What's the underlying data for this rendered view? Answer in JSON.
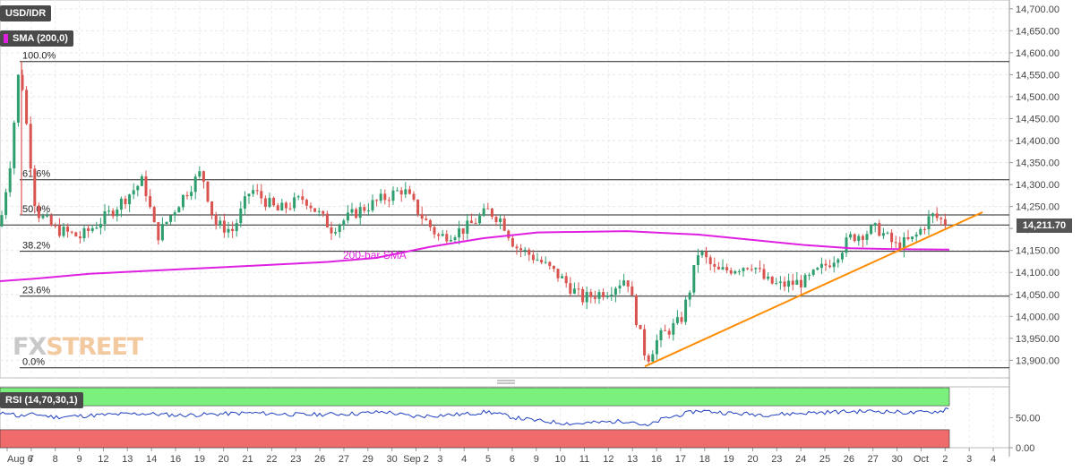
{
  "header": {
    "symbol": "USD/IDR",
    "sma_label": "SMA (200,0)",
    "rsi_label": "RSI (14,70,30,1)"
  },
  "last_price": "14,211.70",
  "logo": {
    "fx": "FX",
    "street": "STREET"
  },
  "colors": {
    "up": "#2e9e6e",
    "down": "#d9534f",
    "sma": "#e020e0",
    "trendline": "#ff8c00",
    "rsi_line": "#1f3fbf",
    "rsi_overbought": "#7cf07c",
    "rsi_oversold": "#f06b6b"
  },
  "chart_data": [
    {
      "type": "candlestick",
      "title": "USD/IDR",
      "ylim": [
        13860,
        14720
      ],
      "y_ticks": [
        "14,700.00",
        "14,650.00",
        "14,600.00",
        "14,550.00",
        "14,500.00",
        "14,450.00",
        "14,400.00",
        "14,350.00",
        "14,300.00",
        "14,250.00",
        "14,200.00",
        "14,150.00",
        "14,100.00",
        "14,050.00",
        "14,000.00",
        "13,950.00",
        "13,900.00"
      ],
      "x_ticks": [
        "Aug 6",
        "7",
        "8",
        "9",
        "12",
        "13",
        "14",
        "16",
        "19",
        "20",
        "21",
        "22",
        "23",
        "26",
        "27",
        "29",
        "30",
        "Sep 2",
        "3",
        "4",
        "5",
        "6",
        "9",
        "10",
        "11",
        "12",
        "13",
        "16",
        "17",
        "18",
        "19",
        "20",
        "23",
        "24",
        "25",
        "26",
        "27",
        "30",
        "Oct",
        "2",
        "3",
        "4"
      ],
      "fibonacci": [
        {
          "label": "100.0%",
          "value": 14580
        },
        {
          "label": "61.6%",
          "value": 14311
        },
        {
          "label": "50.0%",
          "value": 14231
        },
        {
          "label": "38.2%",
          "value": 14148
        },
        {
          "label": "23.6%",
          "value": 14046
        },
        {
          "label": "0.0%",
          "value": 13883
        }
      ],
      "extra_levels": [
        14208
      ],
      "sma_label": "200-bar SMA",
      "sma_series": [
        [
          0,
          14080
        ],
        [
          40,
          14086
        ],
        [
          100,
          14097
        ],
        [
          200,
          14107
        ],
        [
          300,
          14117
        ],
        [
          366,
          14124
        ],
        [
          420,
          14133
        ],
        [
          480,
          14158
        ],
        [
          540,
          14178
        ],
        [
          600,
          14191
        ],
        [
          700,
          14194
        ],
        [
          780,
          14186
        ],
        [
          860,
          14170
        ],
        [
          900,
          14162
        ],
        [
          950,
          14155
        ],
        [
          1000,
          14153
        ],
        [
          1060,
          14152
        ]
      ],
      "trendline": [
        [
          720,
          13886
        ],
        [
          1097,
          14237
        ]
      ],
      "sma_markers": [
        12,
        300,
        900
      ],
      "candle_seed": 7,
      "anchors": [
        [
          0,
          14205
        ],
        [
          12,
          14360
        ],
        [
          22,
          14580
        ],
        [
          40,
          14240
        ],
        [
          60,
          14200
        ],
        [
          90,
          14180
        ],
        [
          120,
          14230
        ],
        [
          160,
          14310
        ],
        [
          175,
          14180
        ],
        [
          200,
          14260
        ],
        [
          225,
          14330
        ],
        [
          240,
          14210
        ],
        [
          260,
          14195
        ],
        [
          280,
          14290
        ],
        [
          310,
          14240
        ],
        [
          340,
          14270
        ],
        [
          370,
          14200
        ],
        [
          400,
          14240
        ],
        [
          420,
          14260
        ],
        [
          450,
          14290
        ],
        [
          470,
          14230
        ],
        [
          490,
          14180
        ],
        [
          520,
          14200
        ],
        [
          545,
          14240
        ],
        [
          560,
          14220
        ],
        [
          575,
          14160
        ],
        [
          600,
          14130
        ],
        [
          625,
          14090
        ],
        [
          650,
          14040
        ],
        [
          680,
          14060
        ],
        [
          700,
          14090
        ],
        [
          712,
          13980
        ],
        [
          722,
          13900
        ],
        [
          735,
          13950
        ],
        [
          760,
          13990
        ],
        [
          770,
          14060
        ],
        [
          780,
          14150
        ],
        [
          800,
          14100
        ],
        [
          840,
          14120
        ],
        [
          855,
          14080
        ],
        [
          870,
          14070
        ],
        [
          900,
          14080
        ],
        [
          930,
          14130
        ],
        [
          950,
          14180
        ],
        [
          980,
          14200
        ],
        [
          1000,
          14160
        ],
        [
          1020,
          14175
        ],
        [
          1040,
          14230
        ],
        [
          1060,
          14210
        ]
      ]
    },
    {
      "type": "line",
      "title": "RSI (14,70,30,1)",
      "ylim": [
        0,
        100
      ],
      "y_ticks": [
        "50.00",
        "0.00"
      ],
      "overbought": 70,
      "oversold": 30,
      "rsi_anchors": [
        [
          0,
          55
        ],
        [
          10,
          60
        ],
        [
          20,
          52
        ],
        [
          40,
          56
        ],
        [
          60,
          51
        ],
        [
          120,
          55
        ],
        [
          160,
          57
        ],
        [
          200,
          54
        ],
        [
          280,
          58
        ],
        [
          340,
          55
        ],
        [
          400,
          57
        ],
        [
          430,
          60
        ],
        [
          460,
          52
        ],
        [
          520,
          56
        ],
        [
          545,
          60
        ],
        [
          575,
          50
        ],
        [
          600,
          45
        ],
        [
          640,
          40
        ],
        [
          680,
          43
        ],
        [
          705,
          45
        ],
        [
          722,
          35
        ],
        [
          740,
          48
        ],
        [
          780,
          62
        ],
        [
          820,
          57
        ],
        [
          860,
          55
        ],
        [
          900,
          58
        ],
        [
          940,
          60
        ],
        [
          980,
          61
        ],
        [
          1020,
          58
        ],
        [
          1052,
          61
        ],
        [
          1058,
          68
        ],
        [
          1060,
          60
        ]
      ]
    }
  ]
}
